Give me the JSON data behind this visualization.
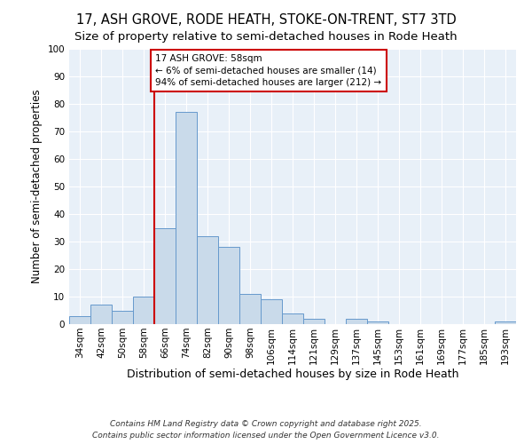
{
  "title": "17, ASH GROVE, RODE HEATH, STOKE-ON-TRENT, ST7 3TD",
  "subtitle": "Size of property relative to semi-detached houses in Rode Heath",
  "xlabel": "Distribution of semi-detached houses by size in Rode Heath",
  "ylabel": "Number of semi-detached properties",
  "categories": [
    "34sqm",
    "42sqm",
    "50sqm",
    "58sqm",
    "66sqm",
    "74sqm",
    "82sqm",
    "90sqm",
    "98sqm",
    "106sqm",
    "114sqm",
    "121sqm",
    "129sqm",
    "137sqm",
    "145sqm",
    "153sqm",
    "161sqm",
    "169sqm",
    "177sqm",
    "185sqm",
    "193sqm"
  ],
  "values": [
    3,
    7,
    5,
    10,
    35,
    77,
    32,
    28,
    11,
    9,
    4,
    2,
    0,
    2,
    1,
    0,
    0,
    0,
    0,
    0,
    1
  ],
  "bar_color": "#c9daea",
  "bar_edge_color": "#6699cc",
  "vline_idx": 3,
  "vline_color": "#cc0000",
  "annotation_title": "17 ASH GROVE: 58sqm",
  "annotation_line1": "← 6% of semi-detached houses are smaller (14)",
  "annotation_line2": "94% of semi-detached houses are larger (212) →",
  "annotation_box_color": "#cc0000",
  "ylim": [
    0,
    100
  ],
  "yticks": [
    0,
    10,
    20,
    30,
    40,
    50,
    60,
    70,
    80,
    90,
    100
  ],
  "background_color": "#e8f0f8",
  "grid_color": "#ffffff",
  "footer": "Contains HM Land Registry data © Crown copyright and database right 2025.\nContains public sector information licensed under the Open Government Licence v3.0.",
  "title_fontsize": 10.5,
  "subtitle_fontsize": 9.5,
  "xlabel_fontsize": 9,
  "ylabel_fontsize": 8.5,
  "tick_fontsize": 7.5,
  "footer_fontsize": 6.5,
  "ann_fontsize": 7.5
}
